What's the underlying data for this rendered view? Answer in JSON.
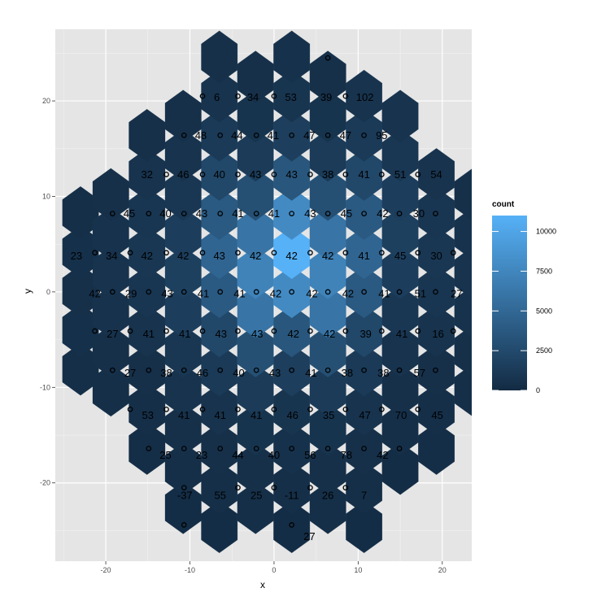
{
  "chart_data": {
    "type": "heatmap",
    "subtype": "hexbin",
    "xlabel": "x",
    "ylabel": "y",
    "xlim": [
      -26,
      23.5
    ],
    "ylim": [
      -28.2,
      27.5
    ],
    "x_ticks": [
      -20,
      -10,
      0,
      10,
      20
    ],
    "y_ticks": [
      -20,
      -10,
      0,
      10,
      20
    ],
    "grid": true,
    "legend": {
      "title": "count",
      "placement": "right",
      "min": 0,
      "max": 11000,
      "ticks": [
        0,
        2500,
        5000,
        7500,
        10000
      ],
      "low_color": "#132b43",
      "high_color": "#56b1f7"
    },
    "hex_spacing": {
      "dx": 4.3,
      "dy": 4.1
    },
    "hex_columns": [
      {
        "cx": -23.0,
        "y_from": -8.1,
        "y_to": 8.1,
        "counts": [
          300,
          400,
          450,
          400,
          300
        ]
      },
      {
        "cx": -19.4,
        "y_from": -10.3,
        "y_to": 10.3,
        "counts": [
          300,
          450,
          600,
          650,
          600,
          450
        ]
      },
      {
        "cx": -15.1,
        "y_from": -16.4,
        "y_to": 16.4,
        "counts": [
          250,
          350,
          450,
          650,
          900,
          1000,
          900,
          650,
          450
        ]
      },
      {
        "cx": -10.8,
        "y_from": -22.6,
        "y_to": 18.5,
        "counts": [
          200,
          300,
          450,
          650,
          950,
          1500,
          1700,
          1500,
          950,
          650,
          450
        ]
      },
      {
        "cx": -6.5,
        "y_from": -24.6,
        "y_to": 24.6,
        "counts": [
          200,
          300,
          450,
          650,
          1200,
          2300,
          3800,
          4800,
          3800,
          2300,
          1200,
          650,
          450
        ]
      },
      {
        "cx": -2.2,
        "y_from": -22.6,
        "y_to": 22.6,
        "counts": [
          300,
          450,
          700,
          1300,
          3000,
          6000,
          7200,
          6000,
          3000,
          1300,
          700,
          450
        ]
      },
      {
        "cx": 2.1,
        "y_from": -24.6,
        "y_to": 24.6,
        "counts": [
          200,
          350,
          500,
          800,
          1600,
          3500,
          7800,
          11000,
          7800,
          3500,
          1600,
          800,
          500
        ]
      },
      {
        "cx": 6.4,
        "y_from": -22.6,
        "y_to": 22.6,
        "counts": [
          300,
          450,
          700,
          1300,
          3000,
          6000,
          7200,
          6000,
          3000,
          1300,
          700,
          450
        ]
      },
      {
        "cx": 10.7,
        "y_from": -24.6,
        "y_to": 20.5,
        "counts": [
          200,
          300,
          450,
          650,
          1200,
          2300,
          3800,
          4800,
          3800,
          2300,
          1200,
          650
        ]
      },
      {
        "cx": 15.0,
        "y_from": -18.5,
        "y_to": 18.5,
        "counts": [
          200,
          300,
          450,
          650,
          950,
          1500,
          1700,
          1500,
          950,
          650
        ]
      },
      {
        "cx": 19.3,
        "y_from": -16.4,
        "y_to": 12.3,
        "counts": [
          250,
          350,
          450,
          650,
          900,
          1000,
          900,
          650
        ]
      },
      {
        "cx": 23.6,
        "y_from": -10.3,
        "y_to": 10.3,
        "counts": [
          300,
          450,
          600,
          650,
          600,
          450
        ]
      }
    ],
    "labels": [
      {
        "x": -2.5,
        "y": 20.4,
        "t": "34"
      },
      {
        "x": 2.0,
        "y": 20.4,
        "t": "53"
      },
      {
        "x": 6.2,
        "y": 20.4,
        "t": "39"
      },
      {
        "x": 10.8,
        "y": 20.4,
        "t": "102"
      },
      {
        "x": -6.8,
        "y": 20.4,
        "t": "6"
      },
      {
        "x": -8.7,
        "y": 16.4,
        "t": "48"
      },
      {
        "x": -4.4,
        "y": 16.4,
        "t": "44"
      },
      {
        "x": -0.1,
        "y": 16.4,
        "t": "41"
      },
      {
        "x": 4.2,
        "y": 16.4,
        "t": "47"
      },
      {
        "x": 8.5,
        "y": 16.4,
        "t": "47"
      },
      {
        "x": 12.8,
        "y": 16.4,
        "t": "95"
      },
      {
        "x": -15.1,
        "y": 12.3,
        "t": "32"
      },
      {
        "x": -10.8,
        "y": 12.3,
        "t": "46"
      },
      {
        "x": -6.5,
        "y": 12.3,
        "t": "40"
      },
      {
        "x": -2.2,
        "y": 12.3,
        "t": "43"
      },
      {
        "x": 2.1,
        "y": 12.3,
        "t": "43"
      },
      {
        "x": 6.4,
        "y": 12.3,
        "t": "38"
      },
      {
        "x": 10.7,
        "y": 12.3,
        "t": "41"
      },
      {
        "x": 15.0,
        "y": 12.3,
        "t": "51"
      },
      {
        "x": 19.3,
        "y": 12.3,
        "t": "54"
      },
      {
        "x": -17.2,
        "y": 8.2,
        "t": "45"
      },
      {
        "x": -12.9,
        "y": 8.2,
        "t": "40"
      },
      {
        "x": -8.6,
        "y": 8.2,
        "t": "43"
      },
      {
        "x": -4.3,
        "y": 8.2,
        "t": "41"
      },
      {
        "x": 0.0,
        "y": 8.2,
        "t": "41"
      },
      {
        "x": 4.3,
        "y": 8.2,
        "t": "43"
      },
      {
        "x": 8.6,
        "y": 8.2,
        "t": "45"
      },
      {
        "x": 12.9,
        "y": 8.2,
        "t": "42"
      },
      {
        "x": 17.2,
        "y": 8.2,
        "t": "30"
      },
      {
        "x": -23.5,
        "y": 3.8,
        "t": "23"
      },
      {
        "x": -19.3,
        "y": 3.8,
        "t": "34"
      },
      {
        "x": -15.1,
        "y": 3.8,
        "t": "42"
      },
      {
        "x": -10.8,
        "y": 3.8,
        "t": "42"
      },
      {
        "x": -6.5,
        "y": 3.8,
        "t": "43"
      },
      {
        "x": -2.2,
        "y": 3.8,
        "t": "42"
      },
      {
        "x": 2.1,
        "y": 3.8,
        "t": "42"
      },
      {
        "x": 6.4,
        "y": 3.8,
        "t": "42"
      },
      {
        "x": 10.7,
        "y": 3.8,
        "t": "41"
      },
      {
        "x": 15.0,
        "y": 3.8,
        "t": "45"
      },
      {
        "x": 19.3,
        "y": 3.8,
        "t": "30"
      },
      {
        "x": -21.3,
        "y": -0.2,
        "t": "42"
      },
      {
        "x": -17.0,
        "y": -0.2,
        "t": "29"
      },
      {
        "x": -12.7,
        "y": -0.2,
        "t": "43"
      },
      {
        "x": -8.4,
        "y": -0.2,
        "t": "41"
      },
      {
        "x": -4.1,
        "y": -0.2,
        "t": "41"
      },
      {
        "x": 0.2,
        "y": -0.2,
        "t": "42"
      },
      {
        "x": 4.5,
        "y": -0.2,
        "t": "42"
      },
      {
        "x": 8.8,
        "y": -0.2,
        "t": "42"
      },
      {
        "x": 13.1,
        "y": -0.2,
        "t": "41"
      },
      {
        "x": 17.4,
        "y": -0.2,
        "t": "51"
      },
      {
        "x": 21.7,
        "y": -0.2,
        "t": "27"
      },
      {
        "x": -19.2,
        "y": -4.4,
        "t": "27"
      },
      {
        "x": -14.9,
        "y": -4.4,
        "t": "41"
      },
      {
        "x": -10.6,
        "y": -4.4,
        "t": "41"
      },
      {
        "x": -6.3,
        "y": -4.4,
        "t": "43"
      },
      {
        "x": -2.0,
        "y": -4.4,
        "t": "43"
      },
      {
        "x": 2.3,
        "y": -4.4,
        "t": "42"
      },
      {
        "x": 6.6,
        "y": -4.4,
        "t": "42"
      },
      {
        "x": 10.9,
        "y": -4.4,
        "t": "39"
      },
      {
        "x": 15.2,
        "y": -4.4,
        "t": "41"
      },
      {
        "x": 19.5,
        "y": -4.4,
        "t": "16"
      },
      {
        "x": -17.1,
        "y": -8.5,
        "t": "27"
      },
      {
        "x": -12.8,
        "y": -8.5,
        "t": "38"
      },
      {
        "x": -8.5,
        "y": -8.5,
        "t": "46"
      },
      {
        "x": -4.2,
        "y": -8.5,
        "t": "40"
      },
      {
        "x": 0.1,
        "y": -8.5,
        "t": "43"
      },
      {
        "x": 4.4,
        "y": -8.5,
        "t": "41"
      },
      {
        "x": 8.7,
        "y": -8.5,
        "t": "38"
      },
      {
        "x": 13.0,
        "y": -8.5,
        "t": "38"
      },
      {
        "x": 17.3,
        "y": -8.5,
        "t": "57"
      },
      {
        "x": -15.0,
        "y": -12.9,
        "t": "53"
      },
      {
        "x": -10.7,
        "y": -12.9,
        "t": "41"
      },
      {
        "x": -6.4,
        "y": -12.9,
        "t": "41"
      },
      {
        "x": -2.1,
        "y": -12.9,
        "t": "41"
      },
      {
        "x": 2.2,
        "y": -12.9,
        "t": "46"
      },
      {
        "x": 6.5,
        "y": -12.9,
        "t": "35"
      },
      {
        "x": 10.8,
        "y": -12.9,
        "t": "47"
      },
      {
        "x": 15.1,
        "y": -12.9,
        "t": "70"
      },
      {
        "x": 19.4,
        "y": -12.9,
        "t": "45"
      },
      {
        "x": -12.9,
        "y": -17.1,
        "t": "25"
      },
      {
        "x": -8.6,
        "y": -17.1,
        "t": "23"
      },
      {
        "x": -4.3,
        "y": -17.1,
        "t": "44"
      },
      {
        "x": 0.0,
        "y": -17.1,
        "t": "40"
      },
      {
        "x": 4.3,
        "y": -17.1,
        "t": "56"
      },
      {
        "x": 8.6,
        "y": -17.1,
        "t": "78"
      },
      {
        "x": 12.9,
        "y": -17.1,
        "t": "42"
      },
      {
        "x": -10.6,
        "y": -21.3,
        "t": "-37"
      },
      {
        "x": -6.4,
        "y": -21.3,
        "t": "55"
      },
      {
        "x": -2.1,
        "y": -21.3,
        "t": "25"
      },
      {
        "x": 2.1,
        "y": -21.3,
        "t": "-11"
      },
      {
        "x": 6.4,
        "y": -21.3,
        "t": "26"
      },
      {
        "x": 10.7,
        "y": -21.3,
        "t": "7"
      },
      {
        "x": 4.2,
        "y": -25.6,
        "t": "27"
      }
    ],
    "points": [
      [
        6.4,
        24.5
      ],
      [
        -8.5,
        20.5
      ],
      [
        -4.3,
        20.5
      ],
      [
        0.0,
        20.5
      ],
      [
        8.5,
        20.5
      ],
      [
        -10.7,
        16.4
      ],
      [
        -6.4,
        16.4
      ],
      [
        -2.1,
        16.4
      ],
      [
        2.1,
        16.4
      ],
      [
        6.4,
        16.4
      ],
      [
        10.7,
        16.4
      ],
      [
        -12.8,
        12.3
      ],
      [
        -8.5,
        12.3
      ],
      [
        -4.3,
        12.3
      ],
      [
        0.0,
        12.3
      ],
      [
        4.3,
        12.3
      ],
      [
        8.5,
        12.3
      ],
      [
        12.8,
        12.3
      ],
      [
        17.1,
        12.3
      ],
      [
        -19.2,
        8.2
      ],
      [
        -14.9,
        8.2
      ],
      [
        -10.7,
        8.2
      ],
      [
        -6.4,
        8.2
      ],
      [
        -2.1,
        8.2
      ],
      [
        2.1,
        8.2
      ],
      [
        6.4,
        8.2
      ],
      [
        10.7,
        8.2
      ],
      [
        14.9,
        8.2
      ],
      [
        19.2,
        8.2
      ],
      [
        -21.3,
        4.1
      ],
      [
        -17.1,
        4.1
      ],
      [
        -12.8,
        4.1
      ],
      [
        -8.5,
        4.1
      ],
      [
        -4.3,
        4.1
      ],
      [
        0.0,
        4.1
      ],
      [
        4.3,
        4.1
      ],
      [
        8.5,
        4.1
      ],
      [
        12.8,
        4.1
      ],
      [
        17.1,
        4.1
      ],
      [
        21.3,
        4.1
      ],
      [
        -19.2,
        0.0
      ],
      [
        -14.9,
        0.0
      ],
      [
        -10.7,
        0.0
      ],
      [
        -6.4,
        0.0
      ],
      [
        -2.1,
        0.0
      ],
      [
        2.1,
        0.0
      ],
      [
        6.4,
        0.0
      ],
      [
        10.7,
        0.0
      ],
      [
        14.9,
        0.0
      ],
      [
        19.2,
        0.0
      ],
      [
        -21.3,
        -4.1
      ],
      [
        -17.1,
        -4.1
      ],
      [
        -12.8,
        -4.1
      ],
      [
        -8.5,
        -4.1
      ],
      [
        -4.3,
        -4.1
      ],
      [
        0.0,
        -4.1
      ],
      [
        4.3,
        -4.1
      ],
      [
        8.5,
        -4.1
      ],
      [
        12.8,
        -4.1
      ],
      [
        17.1,
        -4.1
      ],
      [
        21.3,
        -4.1
      ],
      [
        -19.2,
        -8.2
      ],
      [
        -14.9,
        -8.2
      ],
      [
        -10.7,
        -8.2
      ],
      [
        -6.4,
        -8.2
      ],
      [
        -2.1,
        -8.2
      ],
      [
        2.1,
        -8.2
      ],
      [
        6.4,
        -8.2
      ],
      [
        10.7,
        -8.2
      ],
      [
        14.9,
        -8.2
      ],
      [
        19.2,
        -8.2
      ],
      [
        -17.1,
        -12.3
      ],
      [
        -12.8,
        -12.3
      ],
      [
        -8.5,
        -12.3
      ],
      [
        -4.3,
        -12.3
      ],
      [
        0.0,
        -12.3
      ],
      [
        4.3,
        -12.3
      ],
      [
        8.5,
        -12.3
      ],
      [
        12.8,
        -12.3
      ],
      [
        17.1,
        -12.3
      ],
      [
        -14.9,
        -16.4
      ],
      [
        -10.7,
        -16.4
      ],
      [
        -6.4,
        -16.4
      ],
      [
        -2.1,
        -16.4
      ],
      [
        2.1,
        -16.4
      ],
      [
        6.4,
        -16.4
      ],
      [
        10.7,
        -16.4
      ],
      [
        14.9,
        -16.4
      ],
      [
        -10.7,
        -20.5
      ],
      [
        -4.3,
        -20.5
      ],
      [
        0.0,
        -20.5
      ],
      [
        4.3,
        -20.5
      ],
      [
        8.5,
        -20.5
      ],
      [
        -10.7,
        -24.4
      ],
      [
        2.1,
        -24.4
      ]
    ]
  }
}
